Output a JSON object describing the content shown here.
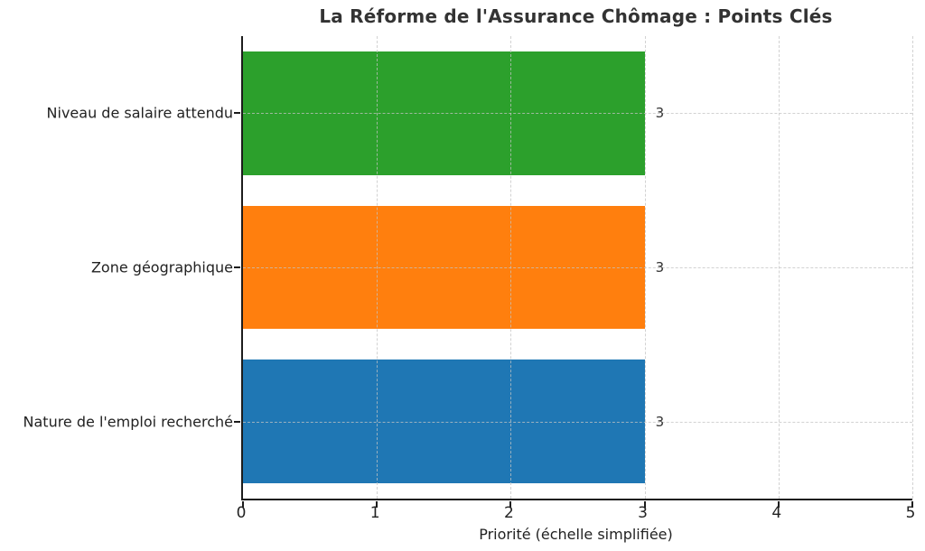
{
  "chart_data": {
    "type": "bar",
    "orientation": "horizontal",
    "title": "La Réforme de l'Assurance Chômage : Points Clés",
    "xlabel": "Priorité (échelle simplifiée)",
    "ylabel": "",
    "categories": [
      "Niveau de salaire attendu",
      "Zone géographique",
      "Nature de l'emploi recherché"
    ],
    "values": [
      3,
      3,
      3
    ],
    "value_labels": [
      "3",
      "3",
      "3"
    ],
    "bar_colors": [
      "#2ca02c",
      "#ff7f0e",
      "#1f77b4"
    ],
    "xlim": [
      0,
      5
    ],
    "xticks": [
      0,
      1,
      2,
      3,
      4,
      5
    ],
    "xtick_labels": [
      "0",
      "1",
      "2",
      "3",
      "4",
      "5"
    ],
    "grid": "dashed gridlines on both axes, drawn over bars",
    "legend": "none",
    "background_color": "#ffffff",
    "title_color": "#333333",
    "text_color": "#222222"
  }
}
